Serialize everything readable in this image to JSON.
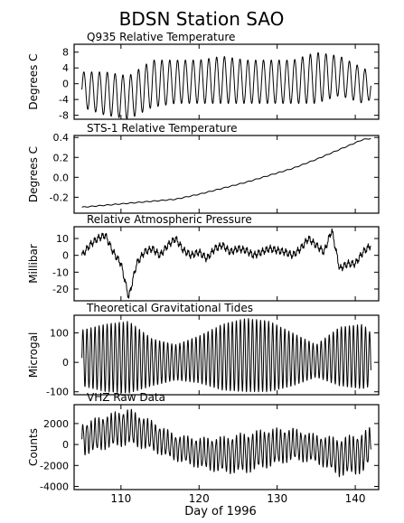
{
  "title": "BDSN Station SAO",
  "xlabel": "Day of 1996",
  "x_ticks": [
    110,
    120,
    130,
    140
  ],
  "xlim": [
    104,
    143
  ],
  "chart_data": [
    {
      "type": "line",
      "title": "Q935 Relative Temperature",
      "ylabel": "Degrees C",
      "ylim": [
        -9,
        10
      ],
      "y_ticks": [
        -8,
        -4,
        0,
        4,
        8
      ],
      "y_tick_labels": [
        "-8",
        "-4",
        "0",
        "4",
        "8"
      ],
      "x": [
        105,
        108,
        111,
        114,
        117,
        120,
        123,
        126,
        129,
        132,
        135,
        138,
        141,
        142
      ],
      "envelope_max": [
        3,
        3,
        2,
        6,
        6,
        6,
        7,
        6,
        6,
        6,
        8,
        7,
        4,
        3
      ],
      "envelope_min": [
        -6,
        -8,
        -9,
        -6,
        -5,
        -5,
        -5,
        -5,
        -5,
        -5,
        -5,
        -3,
        -5,
        -4
      ],
      "cycle_days": 1
    },
    {
      "type": "line",
      "title": "STS-1 Relative Temperature",
      "ylabel": "Degrees C",
      "ylim": [
        -0.36,
        0.42
      ],
      "y_ticks": [
        -0.2,
        0.0,
        0.2,
        0.4
      ],
      "y_tick_labels": [
        "-0.2",
        "0.0",
        "0.2",
        "0.4"
      ],
      "x": [
        105,
        108,
        111,
        114,
        117,
        120,
        123,
        126,
        129,
        132,
        135,
        138,
        141,
        142
      ],
      "values": [
        -0.3,
        -0.28,
        -0.26,
        -0.24,
        -0.22,
        -0.17,
        -0.11,
        -0.05,
        0.02,
        0.09,
        0.18,
        0.28,
        0.38,
        0.39
      ]
    },
    {
      "type": "line",
      "title": "Relative Atmospheric Pressure",
      "ylabel": "Millibar",
      "ylim": [
        -27,
        17
      ],
      "y_ticks": [
        -20,
        -10,
        0,
        10
      ],
      "y_tick_labels": [
        "-20",
        "-10",
        "0",
        "10"
      ],
      "x": [
        105,
        106,
        107,
        108,
        109,
        110,
        111,
        112,
        113,
        114,
        115,
        116,
        117,
        118,
        119,
        120,
        121,
        122,
        123,
        124,
        125,
        126,
        127,
        128,
        129,
        130,
        131,
        132,
        133,
        134,
        135,
        136,
        137,
        138,
        139,
        140,
        141,
        142
      ],
      "values": [
        0,
        6,
        10,
        12,
        2,
        -5,
        -25,
        -5,
        2,
        4,
        0,
        6,
        10,
        3,
        0,
        2,
        -2,
        4,
        6,
        2,
        4,
        3,
        0,
        2,
        4,
        3,
        2,
        0,
        4,
        10,
        6,
        2,
        15,
        -8,
        -5,
        -5,
        2,
        6
      ]
    },
    {
      "type": "line",
      "title": "Theoretical Gravitational Tides",
      "ylabel": "Microgal",
      "ylim": [
        -110,
        160
      ],
      "y_ticks": [
        -100,
        0,
        100
      ],
      "y_tick_labels": [
        "-100",
        "0",
        "100"
      ],
      "x": [
        105,
        108,
        111,
        114,
        117,
        120,
        123,
        126,
        129,
        132,
        135,
        138,
        141,
        142
      ],
      "envelope_max": [
        110,
        130,
        140,
        80,
        60,
        90,
        130,
        150,
        140,
        100,
        60,
        120,
        130,
        100
      ],
      "envelope_min": [
        -80,
        -100,
        -105,
        -80,
        -60,
        -70,
        -95,
        -100,
        -100,
        -80,
        -50,
        -80,
        -90,
        -80
      ],
      "cycle_days": 0.517
    },
    {
      "type": "line",
      "title": "VHZ Raw Data",
      "ylabel": "Counts",
      "ylim": [
        -4300,
        3800
      ],
      "y_ticks": [
        -4000,
        -2000,
        0,
        2000
      ],
      "y_tick_labels": [
        "-4000",
        "-2000",
        "0",
        "2000"
      ],
      "x": [
        105,
        108,
        111,
        114,
        117,
        120,
        123,
        126,
        129,
        132,
        135,
        138,
        141,
        142
      ],
      "trend": [
        500,
        1200,
        1700,
        800,
        -300,
        -800,
        -1000,
        -800,
        -300,
        0,
        -400,
        -1200,
        -800,
        0
      ],
      "amplitude": [
        1600,
        1700,
        1800,
        1500,
        1300,
        1500,
        1800,
        2000,
        1900,
        1600,
        1400,
        1900,
        2000,
        1800
      ],
      "cycle_days": 0.517
    }
  ]
}
